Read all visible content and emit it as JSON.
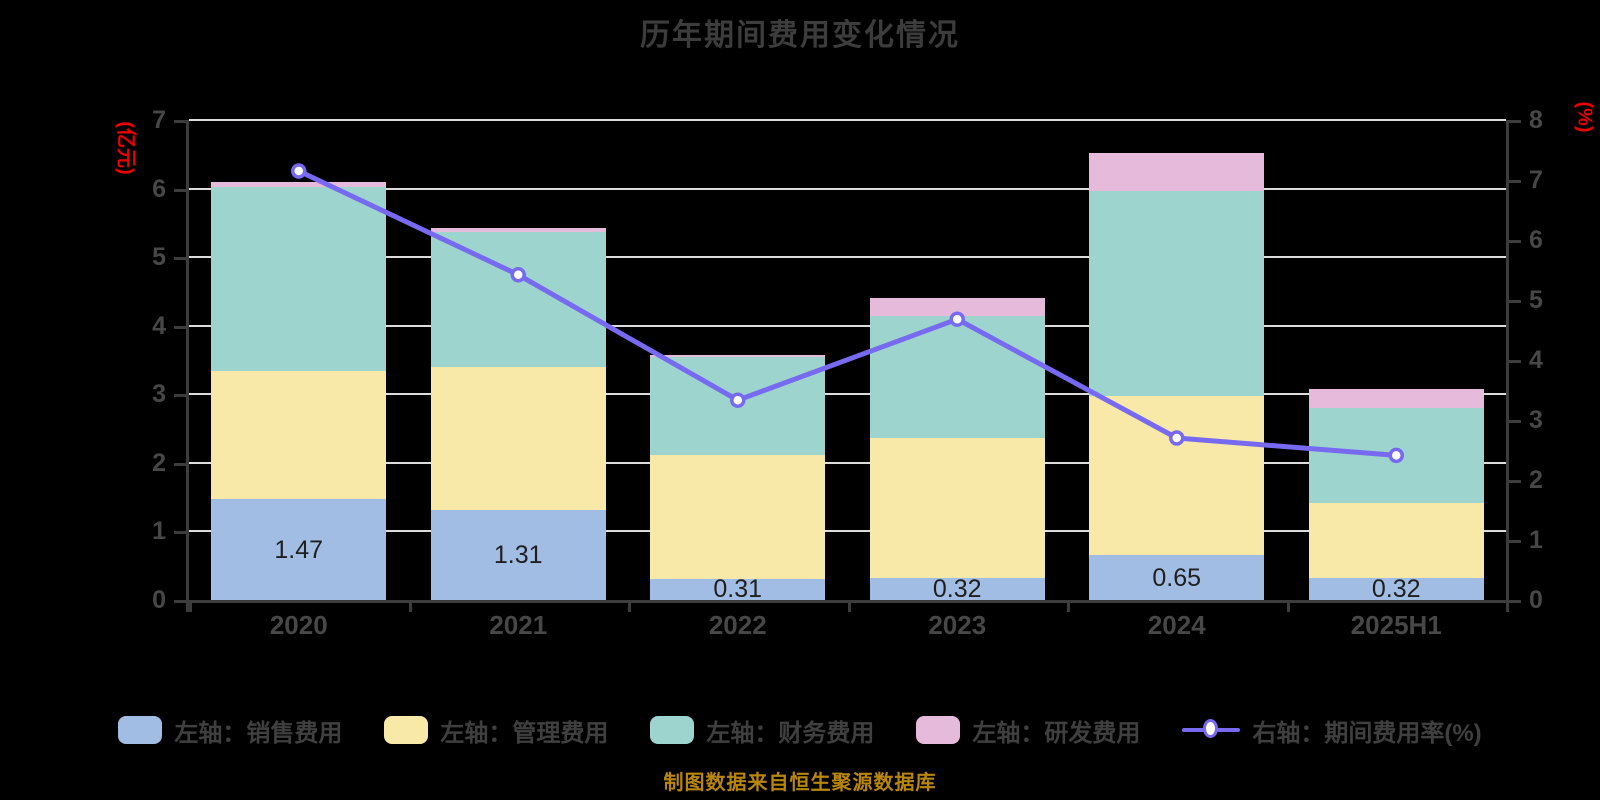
{
  "title": "历年期间费用变化情况",
  "source_note": "制图数据来自恒生聚源数据库",
  "colors": {
    "background": "#000000",
    "grid_line": "#dcdcdc",
    "axis_line": "#3c3c3c",
    "axis_tick_text": "#474747",
    "title_text": "#3c3c3c",
    "bar_value_text": "#1f1f1f",
    "axis_unit_text": "#ee0000",
    "source_text": "#b8860b",
    "legend_text": "#3f3f3f"
  },
  "chart_data": {
    "type": "stacked_bar_with_line",
    "categories": [
      "2020",
      "2021",
      "2022",
      "2023",
      "2024",
      "2025H1"
    ],
    "left_axis": {
      "unit_label": "(亿元)",
      "min": 0,
      "max": 7,
      "ticks": [
        0,
        1,
        2,
        3,
        4,
        5,
        6,
        7
      ]
    },
    "right_axis": {
      "unit_label": "(%)",
      "min": 0,
      "max": 8,
      "ticks": [
        0,
        1,
        2,
        3,
        4,
        5,
        6,
        7,
        8
      ]
    },
    "series": [
      {
        "name": "左轴：销售费用",
        "type": "bar",
        "axis": "left",
        "color": "#a2bde4",
        "values": [
          1.47,
          1.31,
          0.31,
          0.32,
          0.65,
          0.32
        ]
      },
      {
        "name": "左轴：管理费用",
        "type": "bar",
        "axis": "left",
        "color": "#f8e9a9",
        "values": [
          1.87,
          2.09,
          1.8,
          2.04,
          2.33,
          1.1
        ]
      },
      {
        "name": "左轴：财务费用",
        "type": "bar",
        "axis": "left",
        "color": "#9dd5ce",
        "values": [
          2.68,
          1.97,
          1.44,
          1.78,
          2.99,
          1.38
        ]
      },
      {
        "name": "左轴：研发费用",
        "type": "bar",
        "axis": "left",
        "color": "#e6badb",
        "values": [
          0.08,
          0.06,
          0.03,
          0.26,
          0.55,
          0.28
        ]
      },
      {
        "name": "右轴：期间费用率(%)",
        "type": "line",
        "axis": "right",
        "color": "#776af0",
        "values": [
          7.15,
          5.42,
          3.33,
          4.68,
          2.7,
          2.41
        ]
      }
    ],
    "bar_value_labels": {
      "series_name": "左轴：销售费用",
      "values": [
        "1.47",
        "1.31",
        "0.31",
        "0.32",
        "0.65",
        "0.32"
      ]
    },
    "grid": true,
    "legend_position": "bottom"
  }
}
